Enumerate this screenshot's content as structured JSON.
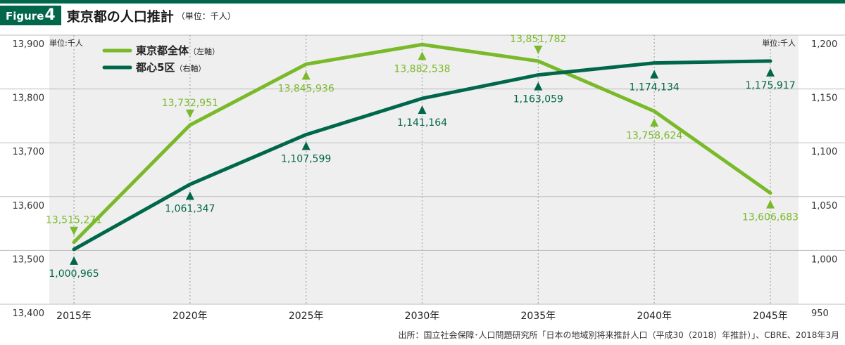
{
  "header": {
    "badge_word": "Figure",
    "badge_number": "4",
    "title": "東京都の人口推計",
    "unit": "（単位：千人）"
  },
  "source": "出所：国立社会保障･人口問題研究所「日本の地域別将来推計人口（平成30（2018）年推計）」、CBRE、2018年3月",
  "colors": {
    "light_green": "#7ab929",
    "dark_green": "#00674a",
    "plot_bg": "#efefef",
    "brand": "#00674a"
  },
  "chart_data": {
    "type": "line",
    "categories": [
      "2015年",
      "2020年",
      "2025年",
      "2030年",
      "2035年",
      "2040年",
      "2045年"
    ],
    "left_axis": {
      "unit_label": "単位:千人",
      "ylim": [
        13400,
        13900
      ],
      "ticks": [
        13400,
        13500,
        13600,
        13700,
        13800,
        13900
      ],
      "tick_labels": [
        "13,400",
        "13,500",
        "13,600",
        "13,700",
        "13,800",
        "13,900"
      ]
    },
    "right_axis": {
      "unit_label": "単位:千人",
      "ylim": [
        950,
        1200
      ],
      "ticks": [
        950,
        1000,
        1050,
        1100,
        1150,
        1200
      ],
      "tick_labels": [
        "950",
        "1,000",
        "1,050",
        "1,100",
        "1,150",
        "1,200"
      ]
    },
    "grid": true,
    "legend": "top-left",
    "series": [
      {
        "name": "東京都全体",
        "axis_note": "（左軸）",
        "axis": "left",
        "color": "#7ab929",
        "values": [
          13515.271,
          13732.951,
          13845.936,
          13882.538,
          13851.782,
          13758.624,
          13606.683
        ],
        "labels": [
          "13,515,271",
          "13,732,951",
          "13,845,936",
          "13,882,538",
          "13,851,782",
          "13,758,624",
          "13,606,683"
        ],
        "label_side": [
          "above",
          "above",
          "below",
          "below",
          "above",
          "below",
          "below"
        ]
      },
      {
        "name": "都心5区",
        "axis_note": "（右軸）",
        "axis": "right",
        "color": "#00674a",
        "values": [
          1000.965,
          1061.347,
          1107.599,
          1141.164,
          1163.059,
          1174.134,
          1175.917
        ],
        "labels": [
          "1,000,965",
          "1,061,347",
          "1,107,599",
          "1,141,164",
          "1,163,059",
          "1,174,134",
          "1,175,917"
        ],
        "label_side": [
          "below",
          "below",
          "below",
          "below",
          "below",
          "below",
          "below"
        ]
      }
    ]
  }
}
